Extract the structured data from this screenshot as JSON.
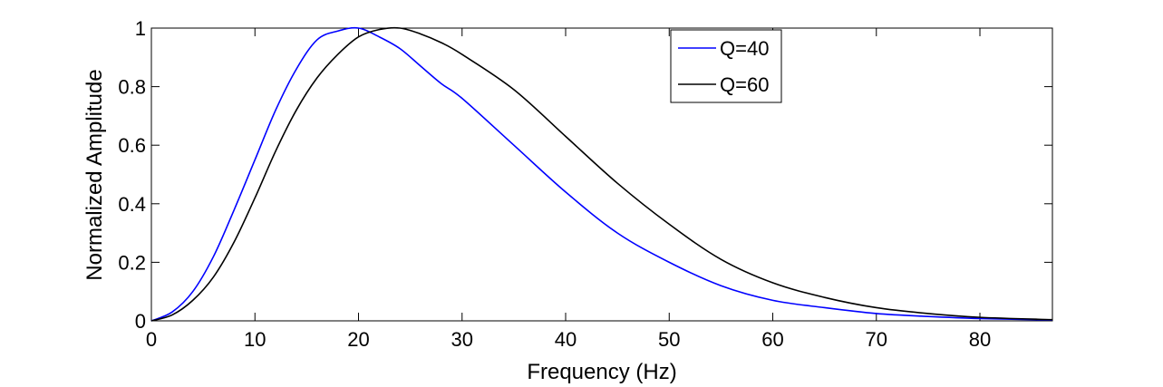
{
  "chart_data": {
    "type": "line",
    "title": "",
    "xlabel": "Frequency (Hz)",
    "ylabel": "Normalized Amplitude",
    "xlim": [
      0,
      87
    ],
    "ylim": [
      0,
      1
    ],
    "xticks": [
      0,
      10,
      20,
      30,
      40,
      50,
      60,
      70,
      80
    ],
    "xtick_labels": [
      "0",
      "10",
      "20",
      "30",
      "40",
      "50",
      "60",
      "70",
      "80"
    ],
    "yticks": [
      0,
      0.2,
      0.4,
      0.6,
      0.8,
      1
    ],
    "ytick_labels": [
      "0",
      "0.2",
      "0.4",
      "0.6",
      "0.8",
      "1"
    ],
    "grid": false,
    "legend_position": "top-center",
    "series": [
      {
        "name": "Q=40",
        "color": "#0000ff",
        "x": [
          0,
          2,
          4,
          6,
          8,
          10,
          12,
          14,
          16,
          18,
          20,
          22,
          24,
          26,
          28,
          30,
          35,
          40,
          45,
          50,
          55,
          60,
          65,
          70,
          75,
          80,
          87
        ],
        "y": [
          0,
          0.03,
          0.1,
          0.22,
          0.38,
          0.55,
          0.72,
          0.86,
          0.96,
          0.99,
          1.0,
          0.97,
          0.93,
          0.87,
          0.81,
          0.76,
          0.6,
          0.44,
          0.3,
          0.2,
          0.12,
          0.07,
          0.045,
          0.025,
          0.015,
          0.008,
          0.003
        ]
      },
      {
        "name": "Q=60",
        "color": "#000000",
        "x": [
          0,
          2,
          4,
          6,
          8,
          10,
          12,
          14,
          16,
          18,
          20,
          22,
          24,
          26,
          28,
          30,
          35,
          40,
          45,
          50,
          55,
          60,
          65,
          70,
          75,
          80,
          87
        ],
        "y": [
          0,
          0.02,
          0.07,
          0.15,
          0.27,
          0.42,
          0.58,
          0.72,
          0.83,
          0.91,
          0.97,
          0.995,
          1.0,
          0.98,
          0.95,
          0.91,
          0.79,
          0.63,
          0.47,
          0.33,
          0.21,
          0.13,
          0.08,
          0.045,
          0.025,
          0.012,
          0.004
        ]
      }
    ]
  }
}
